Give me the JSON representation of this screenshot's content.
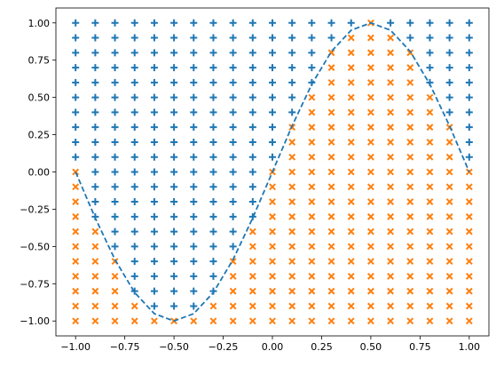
{
  "chart_data": {
    "type": "scatter",
    "title": "",
    "xlabel": "",
    "ylabel": "",
    "xlim": [
      -1.1,
      1.1
    ],
    "ylim": [
      -1.1,
      1.1
    ],
    "grid": false,
    "x_ticks": [
      -1.0,
      -0.75,
      -0.5,
      -0.25,
      0.0,
      0.25,
      0.5,
      0.75,
      1.0
    ],
    "x_tick_labels": [
      "−1.00",
      "−0.75",
      "−0.50",
      "−0.25",
      "0.00",
      "0.25",
      "0.50",
      "0.75",
      "1.00"
    ],
    "y_ticks": [
      -1.0,
      -0.75,
      -0.5,
      -0.25,
      0.0,
      0.25,
      0.5,
      0.75,
      1.0
    ],
    "y_tick_labels": [
      "−1.00",
      "−0.75",
      "−0.50",
      "−0.25",
      "0.00",
      "0.25",
      "0.50",
      "0.75",
      "1.00"
    ],
    "grid_points": {
      "x_start": -1.0,
      "x_end": 1.0,
      "x_step": 0.1,
      "y_start": -1.0,
      "y_end": 1.0,
      "y_step": 0.1
    },
    "series": [
      {
        "marker": "plus",
        "color": "#1f77b4",
        "rule": "y > sin(pi * x)"
      },
      {
        "marker": "x",
        "color": "#ff7f0e",
        "rule": "y <= sin(pi * x)"
      },
      {
        "type": "line",
        "style": "dashed",
        "color": "#1f77b4",
        "function": "sin(pi * x)",
        "x": [
          -1.0,
          -0.9,
          -0.8,
          -0.7,
          -0.6,
          -0.5,
          -0.4,
          -0.3,
          -0.2,
          -0.1,
          0.0,
          0.1,
          0.2,
          0.3,
          0.4,
          0.5,
          0.6,
          0.7,
          0.8,
          0.9,
          1.0
        ],
        "y": [
          0.0,
          -0.309,
          -0.588,
          -0.809,
          -0.951,
          -1.0,
          -0.951,
          -0.809,
          -0.588,
          -0.309,
          0.0,
          0.309,
          0.588,
          0.809,
          0.951,
          1.0,
          0.951,
          0.809,
          0.588,
          0.309,
          0.0
        ]
      }
    ]
  }
}
